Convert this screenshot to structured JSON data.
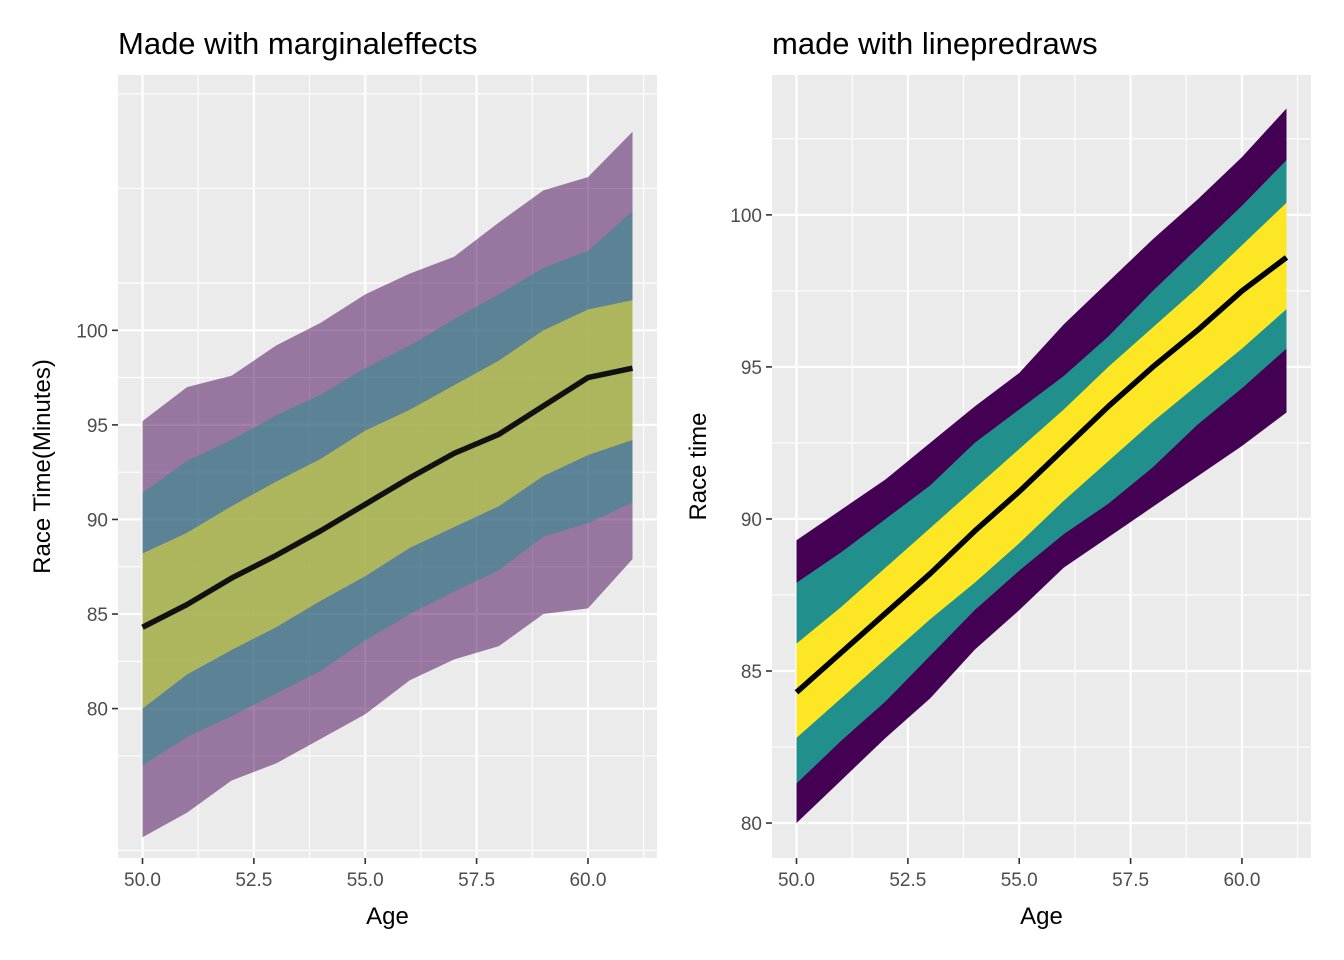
{
  "chart_data": [
    {
      "type": "area",
      "title": "Made with marginaleffects",
      "xlabel": "Age",
      "ylabel": "Race Time(Minutes)",
      "xlim": [
        49.45,
        61.55
      ],
      "ylim": [
        72.1,
        113.5
      ],
      "xticks": [
        50,
        52.5,
        55,
        57.5,
        60
      ],
      "xtick_labels": [
        "50.0",
        "52.5",
        "55.0",
        "57.5",
        "60.0"
      ],
      "yticks": [
        80,
        85,
        90,
        95,
        100
      ],
      "ytick_labels": [
        "80",
        "85",
        "90",
        "95",
        "100"
      ],
      "grid": true,
      "x": [
        50,
        51,
        52,
        53,
        54,
        55,
        56,
        57,
        58,
        59,
        60,
        61
      ],
      "series": [
        {
          "color": "#440154",
          "opacity": 0.5,
          "lower": [
            73.2,
            74.5,
            76.2,
            77.1,
            78.4,
            79.7,
            81.5,
            82.6,
            83.3,
            85.0,
            85.3,
            87.9
          ],
          "upper": [
            95.2,
            97.0,
            97.6,
            99.2,
            100.4,
            101.9,
            103.0,
            103.9,
            105.7,
            107.4,
            108.1,
            110.5
          ]
        },
        {
          "color": "#21908C",
          "opacity": 0.5,
          "lower": [
            77.0,
            78.5,
            79.6,
            80.8,
            82.0,
            83.6,
            85.0,
            86.2,
            87.3,
            89.1,
            89.8,
            90.9
          ],
          "upper": [
            91.4,
            93.1,
            94.2,
            95.5,
            96.6,
            98.0,
            99.2,
            100.6,
            101.9,
            103.3,
            104.2,
            106.3
          ]
        },
        {
          "color": "#FDE725",
          "opacity": 0.5,
          "lower": [
            80.0,
            81.8,
            83.1,
            84.3,
            85.7,
            87.0,
            88.5,
            89.6,
            90.7,
            92.3,
            93.4,
            94.2
          ],
          "upper": [
            88.2,
            89.3,
            90.7,
            92.0,
            93.2,
            94.7,
            95.8,
            97.1,
            98.4,
            100.0,
            101.1,
            101.6
          ]
        }
      ],
      "line": {
        "color": "#111111",
        "values": [
          84.3,
          85.5,
          86.9,
          88.1,
          89.4,
          90.8,
          92.2,
          93.5,
          94.5,
          96.0,
          97.5,
          98.0
        ]
      }
    },
    {
      "type": "area",
      "title": "made with linepredraws",
      "xlabel": "Age",
      "ylabel": "Race time",
      "xlim": [
        49.45,
        61.55
      ],
      "ylim": [
        78.85,
        104.6
      ],
      "xticks": [
        50,
        52.5,
        55,
        57.5,
        60
      ],
      "xtick_labels": [
        "50.0",
        "52.5",
        "55.0",
        "57.5",
        "60.0"
      ],
      "yticks": [
        80,
        85,
        90,
        95,
        100
      ],
      "ytick_labels": [
        "80",
        "85",
        "90",
        "95",
        "100"
      ],
      "grid": true,
      "x": [
        50,
        51,
        52,
        53,
        54,
        55,
        56,
        57,
        58,
        59,
        60,
        61
      ],
      "series": [
        {
          "color": "#440154",
          "opacity": 1.0,
          "lower": [
            80.0,
            81.4,
            82.8,
            84.1,
            85.7,
            87.0,
            88.4,
            89.4,
            90.4,
            91.4,
            92.4,
            93.5
          ],
          "upper": [
            89.3,
            90.3,
            91.3,
            92.5,
            93.7,
            94.8,
            96.4,
            97.8,
            99.2,
            100.5,
            101.9,
            103.5
          ]
        },
        {
          "color": "#21908C",
          "opacity": 1.0,
          "lower": [
            81.3,
            82.7,
            84.0,
            85.5,
            87.0,
            88.3,
            89.5,
            90.5,
            91.7,
            93.1,
            94.3,
            95.6
          ],
          "upper": [
            87.9,
            88.9,
            90.0,
            91.1,
            92.5,
            93.6,
            94.7,
            96.0,
            97.5,
            98.9,
            100.3,
            101.8
          ]
        },
        {
          "color": "#FDE725",
          "opacity": 1.0,
          "lower": [
            82.8,
            84.1,
            85.4,
            86.7,
            87.9,
            89.2,
            90.6,
            91.9,
            93.2,
            94.4,
            95.6,
            96.9
          ],
          "upper": [
            85.9,
            87.1,
            88.4,
            89.7,
            91.0,
            92.3,
            93.6,
            95.0,
            96.3,
            97.6,
            99.0,
            100.4
          ]
        }
      ],
      "line": {
        "color": "#000000",
        "values": [
          84.3,
          85.6,
          86.9,
          88.2,
          89.6,
          90.9,
          92.3,
          93.7,
          95.0,
          96.2,
          97.5,
          98.6
        ]
      }
    }
  ]
}
